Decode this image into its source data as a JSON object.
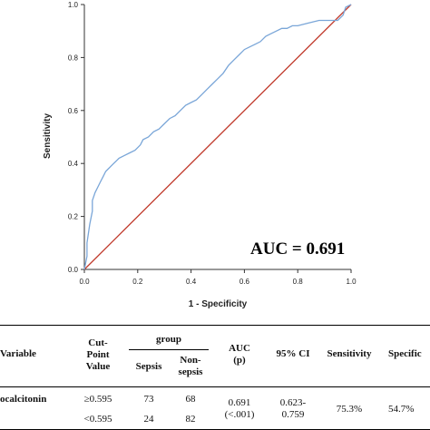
{
  "chart_data": {
    "type": "line",
    "xlabel": "1 - Specificity",
    "ylabel": "Sensitivity",
    "xlim": [
      0,
      1.0
    ],
    "ylim": [
      0,
      1.0
    ],
    "xticks": [
      "0.0",
      "0.2",
      "0.4",
      "0.6",
      "0.8",
      "1.0"
    ],
    "yticks": [
      "0.0",
      "0.2",
      "0.4",
      "0.6",
      "0.8",
      "1.0"
    ],
    "grid": false,
    "annotation": "AUC = 0.691",
    "series": [
      {
        "color": "#7aa6d8",
        "x": [
          0,
          0.01,
          0.01,
          0.02,
          0.03,
          0.03,
          0.04,
          0.05,
          0.06,
          0.07,
          0.08,
          0.09,
          0.1,
          0.11,
          0.12,
          0.13,
          0.15,
          0.17,
          0.19,
          0.21,
          0.22,
          0.24,
          0.26,
          0.28,
          0.3,
          0.32,
          0.34,
          0.36,
          0.38,
          0.4,
          0.42,
          0.44,
          0.46,
          0.48,
          0.5,
          0.52,
          0.54,
          0.56,
          0.58,
          0.6,
          0.62,
          0.64,
          0.66,
          0.68,
          0.7,
          0.72,
          0.74,
          0.76,
          0.78,
          0.8,
          0.84,
          0.88,
          0.92,
          0.95,
          0.97,
          0.98,
          1.0
        ],
        "y": [
          0,
          0.05,
          0.1,
          0.17,
          0.22,
          0.26,
          0.29,
          0.31,
          0.33,
          0.35,
          0.37,
          0.38,
          0.39,
          0.4,
          0.41,
          0.42,
          0.43,
          0.44,
          0.45,
          0.47,
          0.49,
          0.5,
          0.52,
          0.53,
          0.55,
          0.57,
          0.58,
          0.6,
          0.62,
          0.63,
          0.64,
          0.66,
          0.68,
          0.7,
          0.72,
          0.74,
          0.77,
          0.79,
          0.81,
          0.83,
          0.84,
          0.85,
          0.86,
          0.88,
          0.89,
          0.9,
          0.91,
          0.91,
          0.92,
          0.92,
          0.93,
          0.94,
          0.94,
          0.94,
          0.96,
          0.99,
          1.0
        ]
      },
      {
        "color": "#c0392b",
        "x": [
          0,
          1.0
        ],
        "y": [
          0,
          1.0
        ]
      }
    ]
  },
  "table": {
    "headers": {
      "variable": "Variable",
      "cut_point": "Cut-\nPoint\nValue",
      "group": "group",
      "sepsis": "Sepsis",
      "non_sepsis": "Non-\nsepsis",
      "auc": "AUC\n(p)",
      "ci": "95% CI",
      "sensitivity": "Sensitivity",
      "specificity": "Specific"
    },
    "variable_name": "ocalcitonin",
    "rows": [
      {
        "cut": "≥0.595",
        "sepsis": "73",
        "non_sepsis": "68"
      },
      {
        "cut": "<0.595",
        "sepsis": "24",
        "non_sepsis": "82"
      }
    ],
    "auc": "0.691\n(<.001)",
    "ci": "0.623-\n0.759",
    "sensitivity": "75.3%",
    "specificity": "54.7%"
  }
}
